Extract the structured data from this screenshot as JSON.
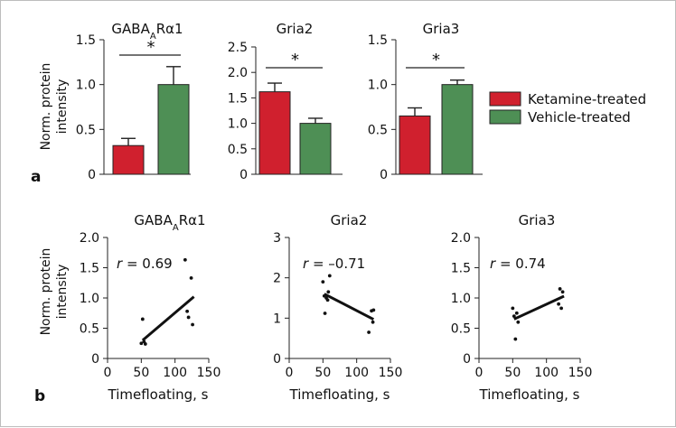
{
  "figure": {
    "panel_a_label": "a",
    "panel_b_label": "b",
    "ylabel_line1": "Norm. protein",
    "ylabel_line2": "intensity",
    "legend": [
      {
        "label": "Ketamine-treated",
        "color": "#d0202e"
      },
      {
        "label": "Vehicle-treated",
        "color": "#4e8f55"
      }
    ]
  },
  "chart_data": [
    {
      "type": "bar",
      "title": "GABAARα1",
      "title_main": "GABA",
      "title_sub": "A",
      "title_tail": "Rα1",
      "categories": [
        "Ketamine-treated",
        "Vehicle-treated"
      ],
      "values": [
        0.32,
        1.0
      ],
      "errors": [
        0.08,
        0.2
      ],
      "colors": [
        "#d0202e",
        "#4e8f55"
      ],
      "ylim": [
        0,
        1.5
      ],
      "yticks": [
        "0",
        "0.5",
        "1.0",
        "1.5"
      ],
      "ytick_values": [
        0,
        0.5,
        1.0,
        1.5
      ],
      "ylabel": "Norm. protein intensity",
      "significance": "*"
    },
    {
      "type": "bar",
      "title": "Gria2",
      "categories": [
        "Ketamine-treated",
        "Vehicle-treated"
      ],
      "values": [
        1.62,
        1.0
      ],
      "errors": [
        0.17,
        0.1
      ],
      "colors": [
        "#d0202e",
        "#4e8f55"
      ],
      "ylim": [
        0,
        2.5
      ],
      "yticks": [
        "0",
        "0.5",
        "1.0",
        "1.5",
        "2.0",
        "2.5"
      ],
      "ytick_values": [
        0,
        0.5,
        1.0,
        1.5,
        2.0,
        2.5
      ],
      "significance": "*"
    },
    {
      "type": "bar",
      "title": "Gria3",
      "categories": [
        "Ketamine-treated",
        "Vehicle-treated"
      ],
      "values": [
        0.65,
        1.0
      ],
      "errors": [
        0.09,
        0.05
      ],
      "colors": [
        "#d0202e",
        "#4e8f55"
      ],
      "ylim": [
        0,
        1.5
      ],
      "yticks": [
        "0",
        "0.5",
        "1.0",
        "1.5"
      ],
      "ytick_values": [
        0,
        0.5,
        1.0,
        1.5
      ],
      "significance": "*"
    },
    {
      "type": "scatter",
      "title": "GABAARα1",
      "title_main": "GABA",
      "title_sub": "A",
      "title_tail": "Rα1",
      "annotation_r": "r",
      "annotation_value": " = 0.69",
      "xlabel": "Timefloating, s",
      "ylabel": "Norm. protein intensity",
      "xlim": [
        0,
        150
      ],
      "ylim": [
        0,
        2.0
      ],
      "xticks": [
        "0",
        "50",
        "100",
        "150"
      ],
      "xtick_values": [
        0,
        50,
        100,
        150
      ],
      "yticks": [
        "0",
        "0.5",
        "1.0",
        "1.5",
        "2.0"
      ],
      "ytick_values": [
        0,
        0.5,
        1.0,
        1.5,
        2.0
      ],
      "x": [
        50,
        52,
        54,
        56,
        115,
        118,
        120,
        124,
        126
      ],
      "y": [
        0.25,
        0.65,
        0.28,
        0.24,
        1.63,
        0.78,
        0.68,
        1.33,
        0.56
      ],
      "fit": [
        [
          52,
          0.3
        ],
        [
          128,
          1.02
        ]
      ]
    },
    {
      "type": "scatter",
      "title": "Gria2",
      "annotation_r": "r",
      "annotation_value": " = –0.71",
      "xlabel": "Timefloating, s",
      "xlim": [
        0,
        150
      ],
      "ylim": [
        0,
        3
      ],
      "xticks": [
        "0",
        "50",
        "100",
        "150"
      ],
      "xtick_values": [
        0,
        50,
        100,
        150
      ],
      "yticks": [
        "0",
        "1",
        "2",
        "3"
      ],
      "ytick_values": [
        0,
        1,
        2,
        3
      ],
      "x": [
        50,
        52,
        53,
        55,
        57,
        58,
        60,
        118,
        122,
        124,
        125
      ],
      "y": [
        1.9,
        1.55,
        1.12,
        1.5,
        1.45,
        1.65,
        2.05,
        0.65,
        1.18,
        0.9,
        1.2
      ],
      "fit": [
        [
          52,
          1.6
        ],
        [
          125,
          0.97
        ]
      ]
    },
    {
      "type": "scatter",
      "title": "Gria3",
      "annotation_r": "r",
      "annotation_value": " = 0.74",
      "xlabel": "Timefloating, s",
      "xlim": [
        0,
        150
      ],
      "ylim": [
        0,
        2.0
      ],
      "xticks": [
        "0",
        "50",
        "100",
        "150"
      ],
      "xtick_values": [
        0,
        50,
        100,
        150
      ],
      "yticks": [
        "0",
        "0.5",
        "1.0",
        "1.5",
        "2.0"
      ],
      "ytick_values": [
        0,
        0.5,
        1.0,
        1.5,
        2.0
      ],
      "x": [
        50,
        52,
        54,
        56,
        58,
        118,
        120,
        122,
        124
      ],
      "y": [
        0.83,
        0.7,
        0.32,
        0.75,
        0.6,
        0.9,
        1.15,
        0.83,
        1.1
      ],
      "fit": [
        [
          52,
          0.65
        ],
        [
          126,
          1.03
        ]
      ]
    }
  ]
}
